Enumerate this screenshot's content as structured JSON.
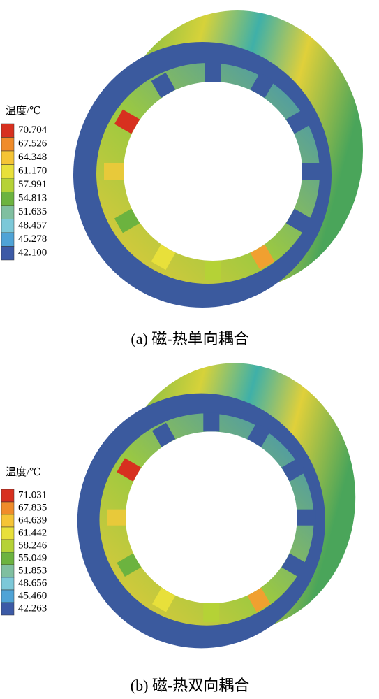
{
  "panels": [
    {
      "legend": {
        "title": "温度/℃",
        "labels": [
          "70.704",
          "67.526",
          "64.348",
          "61.170",
          "57.991",
          "54.813",
          "51.635",
          "48.457",
          "45.278",
          "42.100"
        ]
      },
      "caption": "(a) 磁-热单向耦合"
    },
    {
      "legend": {
        "title": "温度/℃",
        "labels": [
          "71.031",
          "67.835",
          "64.639",
          "61.442",
          "58.246",
          "55.049",
          "51.853",
          "48.656",
          "45.460",
          "42.263"
        ]
      },
      "caption": "(b) 磁-热双向耦合"
    }
  ]
}
